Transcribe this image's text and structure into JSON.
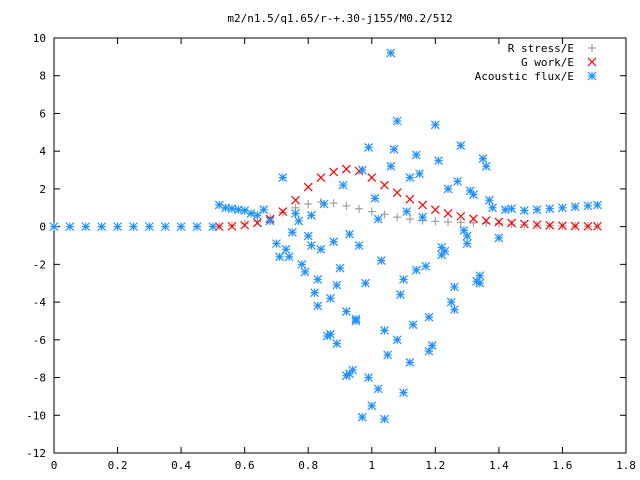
{
  "chart_data": {
    "type": "scatter",
    "title": "m2/n1.5/q1.65/r-+.30-j155/M0.2/512",
    "xlabel": "",
    "ylabel": "",
    "xlim": [
      0,
      1.8
    ],
    "ylim": [
      -12,
      10
    ],
    "x_ticks": [
      "0",
      "0.2",
      "0.4",
      "0.6",
      "0.8",
      "1",
      "1.2",
      "1.4",
      "1.6",
      "1.8"
    ],
    "y_ticks": [
      "-12",
      "-10",
      "-8",
      "-6",
      "-4",
      "-2",
      "0",
      "2",
      "4",
      "6",
      "8",
      "10"
    ],
    "grid": false,
    "legend_position": "top-right",
    "series": [
      {
        "name": "R stress/E",
        "marker": "plus",
        "color": "#a0a0a0",
        "x": [
          0.52,
          0.56,
          0.6,
          0.64,
          0.68,
          0.72,
          0.76,
          0.8,
          0.84,
          0.88,
          0.92,
          0.96,
          1.0,
          1.04,
          1.08,
          1.12,
          1.16,
          1.2,
          1.24,
          1.28,
          1.32,
          1.36,
          1.4,
          1.44,
          1.48,
          1.52,
          1.56,
          1.6,
          1.64,
          1.68,
          1.71
        ],
        "y": [
          0.02,
          0.05,
          0.15,
          0.3,
          0.5,
          0.75,
          1.0,
          1.2,
          1.3,
          1.25,
          1.1,
          0.95,
          0.8,
          0.65,
          0.5,
          0.4,
          0.32,
          0.28,
          0.25,
          0.22,
          0.2,
          0.18,
          0.16,
          0.13,
          0.1,
          0.08,
          0.06,
          0.04,
          0.03,
          0.02,
          0.02
        ]
      },
      {
        "name": "G work/E",
        "marker": "cross",
        "color": "#ff0000",
        "x": [
          0.52,
          0.56,
          0.6,
          0.64,
          0.68,
          0.72,
          0.76,
          0.8,
          0.84,
          0.88,
          0.92,
          0.96,
          1.0,
          1.04,
          1.08,
          1.12,
          1.16,
          1.2,
          1.24,
          1.28,
          1.32,
          1.36,
          1.4,
          1.44,
          1.48,
          1.52,
          1.56,
          1.6,
          1.64,
          1.68,
          1.71
        ],
        "y": [
          0.0,
          0.02,
          0.08,
          0.2,
          0.4,
          0.8,
          1.4,
          2.1,
          2.6,
          2.9,
          3.05,
          2.95,
          2.6,
          2.2,
          1.8,
          1.45,
          1.15,
          0.9,
          0.7,
          0.55,
          0.42,
          0.32,
          0.25,
          0.19,
          0.14,
          0.1,
          0.07,
          0.05,
          0.03,
          0.02,
          0.02
        ]
      },
      {
        "name": "Acoustic flux/E",
        "marker": "asterisk",
        "color": "#1e90ff",
        "x": [
          0.0,
          0.05,
          0.1,
          0.15,
          0.2,
          0.25,
          0.3,
          0.35,
          0.4,
          0.45,
          0.5,
          0.52,
          0.54,
          0.56,
          0.58,
          0.6,
          0.62,
          0.64,
          0.66,
          0.68,
          0.7,
          0.72,
          0.74,
          0.76,
          0.78,
          0.8,
          0.82,
          0.84,
          0.86,
          0.88,
          0.9,
          0.92,
          0.94,
          0.96,
          0.98,
          1.0,
          1.02,
          1.04,
          1.06,
          1.08,
          1.1,
          1.12,
          1.14,
          1.16,
          1.18,
          1.2,
          1.22,
          1.24,
          1.26,
          1.28,
          1.3,
          1.32,
          1.34,
          1.36,
          1.38,
          1.4,
          1.42,
          1.44,
          1.48,
          1.52,
          1.56,
          1.6,
          1.64,
          1.68,
          1.71,
          0.73,
          0.77,
          0.79,
          0.81,
          0.83,
          0.85,
          0.87,
          0.89,
          0.91,
          0.93,
          0.95,
          0.97,
          0.99,
          1.01,
          1.03,
          1.05,
          1.07,
          1.09,
          1.11,
          1.13,
          1.15,
          1.17,
          1.19,
          1.21,
          1.23,
          1.25,
          1.27,
          1.29,
          1.31,
          1.33,
          1.35,
          1.37,
          0.71,
          0.75,
          0.83,
          0.87,
          0.93,
          0.97,
          1.04,
          1.1,
          1.18,
          1.26,
          1.34,
          0.81,
          0.89,
          0.95,
          1.02,
          1.08,
          1.14,
          1.22,
          1.3,
          0.92,
          0.99,
          1.06,
          1.12
        ],
        "y": [
          0.0,
          0.0,
          0.0,
          0.0,
          0.0,
          0.0,
          0.0,
          0.0,
          0.0,
          0.0,
          0.0,
          1.15,
          1.0,
          0.95,
          0.9,
          0.85,
          0.7,
          0.6,
          0.9,
          0.3,
          -0.9,
          2.6,
          -1.6,
          0.7,
          -2.0,
          -0.5,
          -3.5,
          -1.2,
          -5.8,
          -0.8,
          -2.2,
          -4.5,
          -7.6,
          -1.0,
          -3.0,
          -9.5,
          0.4,
          -5.5,
          9.2,
          5.6,
          -2.8,
          -7.2,
          3.8,
          0.5,
          -4.8,
          5.4,
          -1.5,
          2.0,
          -3.2,
          4.3,
          -0.9,
          1.7,
          -2.6,
          3.2,
          1.0,
          -0.6,
          0.9,
          0.95,
          0.85,
          0.9,
          0.95,
          1.0,
          1.05,
          1.1,
          1.15,
          -1.2,
          0.3,
          -2.4,
          0.6,
          -4.2,
          1.2,
          -3.8,
          -6.2,
          2.2,
          -0.4,
          -5.0,
          3.0,
          -8.0,
          1.5,
          -1.8,
          -6.8,
          4.1,
          -3.6,
          0.8,
          -5.2,
          2.8,
          -2.1,
          -6.3,
          3.5,
          -1.3,
          -4.0,
          2.4,
          -0.2,
          1.9,
          -2.9,
          3.6,
          1.4,
          -1.6,
          -0.3,
          -2.8,
          -5.7,
          -7.8,
          -10.1,
          -10.2,
          -8.8,
          -6.6,
          -4.4,
          -3.0,
          -1.0,
          -3.1,
          -4.9,
          -8.6,
          -6.0,
          -2.3,
          -1.1,
          -0.5,
          -7.9,
          4.2,
          3.2,
          2.6
        ]
      }
    ]
  }
}
